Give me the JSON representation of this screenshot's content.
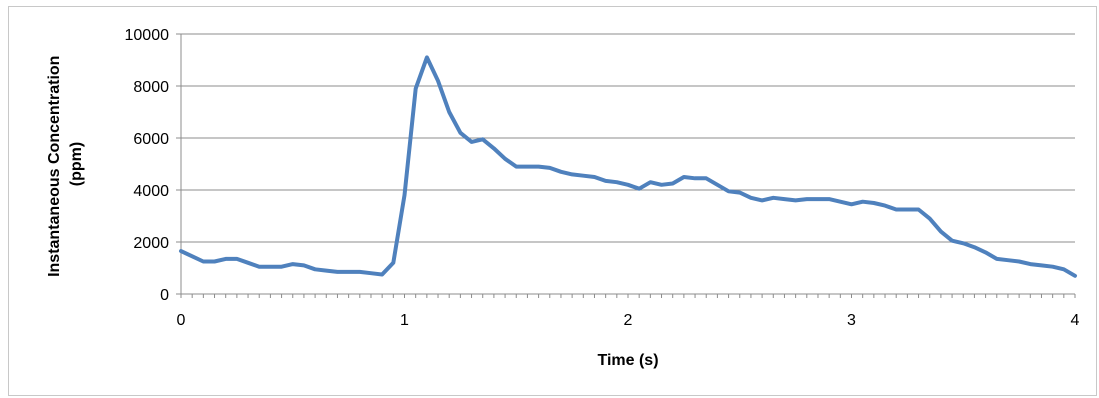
{
  "chart_data": {
    "type": "line",
    "xlabel": "Time (s)",
    "ylabel_lines": [
      "Instantaneous Concentration",
      "(ppm)"
    ],
    "xlim": [
      0,
      4
    ],
    "ylim": [
      0,
      10000
    ],
    "x_ticks": [
      0,
      1,
      2,
      3,
      4
    ],
    "x_tick_labels": [
      "0",
      "1",
      "2",
      "3",
      "4"
    ],
    "y_ticks": [
      0,
      2000,
      4000,
      6000,
      8000,
      10000
    ],
    "y_tick_labels": [
      "0",
      "2000",
      "4000",
      "6000",
      "8000",
      "10000"
    ],
    "grid": "horizontal",
    "legend": "none",
    "series": [
      {
        "color": "#4f81bd",
        "x": [
          0,
          0.05,
          0.1,
          0.15,
          0.2,
          0.25,
          0.3,
          0.35,
          0.4,
          0.45,
          0.5,
          0.55,
          0.6,
          0.65,
          0.7,
          0.75,
          0.8,
          0.85,
          0.9,
          0.95,
          1.0,
          1.05,
          1.1,
          1.15,
          1.2,
          1.25,
          1.3,
          1.35,
          1.4,
          1.45,
          1.5,
          1.55,
          1.6,
          1.65,
          1.7,
          1.75,
          1.8,
          1.85,
          1.9,
          1.95,
          2.0,
          2.05,
          2.1,
          2.15,
          2.2,
          2.25,
          2.3,
          2.35,
          2.4,
          2.45,
          2.5,
          2.55,
          2.6,
          2.65,
          2.7,
          2.75,
          2.8,
          2.85,
          2.9,
          2.95,
          3.0,
          3.05,
          3.1,
          3.15,
          3.2,
          3.25,
          3.3,
          3.35,
          3.4,
          3.45,
          3.5,
          3.55,
          3.6,
          3.65,
          3.7,
          3.75,
          3.8,
          3.85,
          3.9,
          3.95,
          4.0
        ],
        "y": [
          1650,
          1450,
          1250,
          1250,
          1350,
          1350,
          1200,
          1050,
          1050,
          1050,
          1150,
          1100,
          950,
          900,
          850,
          850,
          850,
          800,
          750,
          1200,
          3800,
          7900,
          9100,
          8200,
          7000,
          6200,
          5850,
          5950,
          5600,
          5200,
          4900,
          4900,
          4900,
          4850,
          4700,
          4600,
          4550,
          4500,
          4350,
          4300,
          4200,
          4050,
          4300,
          4200,
          4250,
          4500,
          4450,
          4450,
          4200,
          3950,
          3900,
          3700,
          3600,
          3700,
          3650,
          3600,
          3650,
          3650,
          3650,
          3550,
          3450,
          3550,
          3500,
          3400,
          3250,
          3250,
          3250,
          2900,
          2400,
          2050,
          1950,
          1800,
          1600,
          1350,
          1300,
          1250,
          1150,
          1100,
          1050,
          950,
          700
        ]
      }
    ]
  }
}
